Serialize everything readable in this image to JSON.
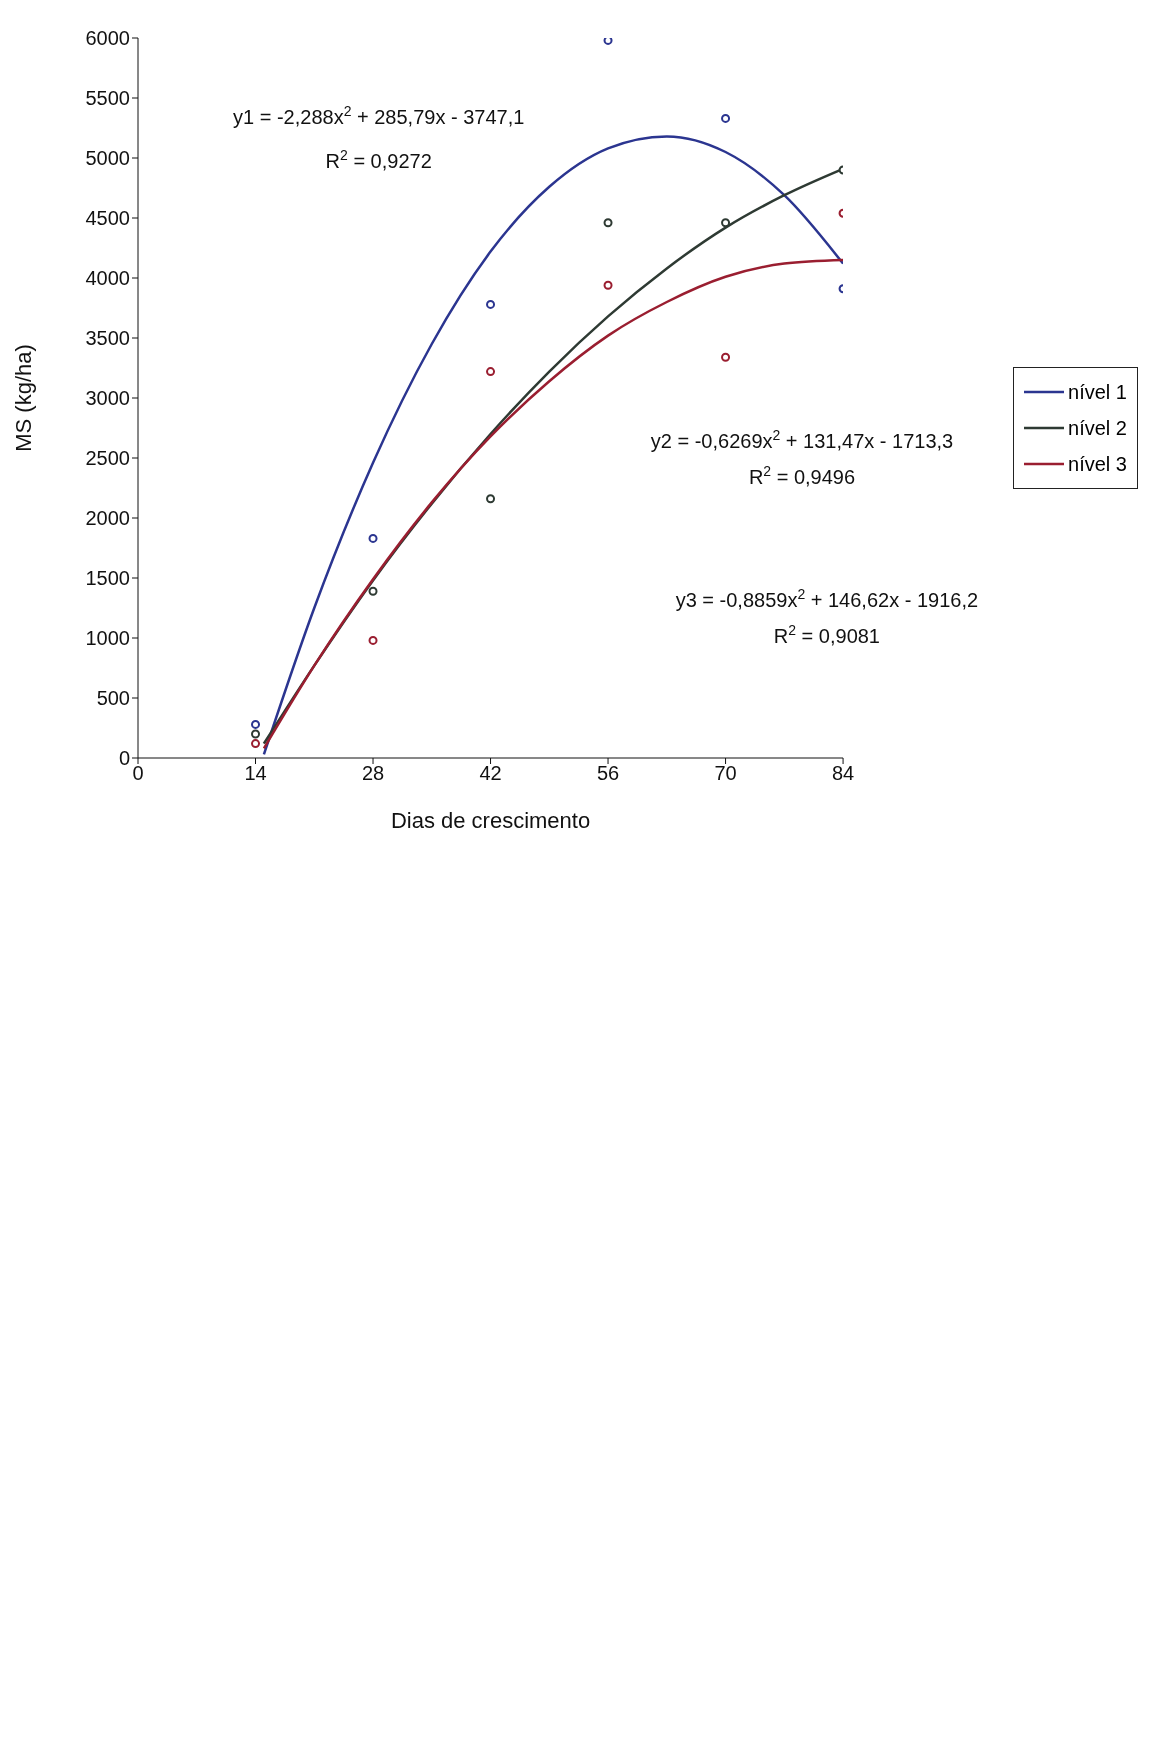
{
  "chart_data": {
    "type": "scatter",
    "xlabel": "Dias de crescimento",
    "ylabel": "MS (kg/ha)",
    "xlim": [
      0,
      84
    ],
    "xticks": [
      0,
      14,
      28,
      42,
      56,
      70,
      84
    ],
    "ylim": [
      0,
      6000
    ],
    "yticks": [
      0,
      500,
      1000,
      1500,
      2000,
      2500,
      3000,
      3500,
      4000,
      4500,
      5000,
      5500,
      6000
    ],
    "grid": false,
    "legend": "right",
    "marker": "circle",
    "annotations": [
      "y1 = -2,288x$^{2}$ + 285,79x - 3747,1",
      "R$^{2}$ = 0,9272",
      "y2 = -0,6269x$^{2}$ + 131,47x - 1713,3",
      "R$^{2}$ = 0,9496",
      "y3 = -0,8859x$^{2}$ + 146,62x - 1916,2",
      "R$^{2}$ = 0,9081"
    ],
    "series": [
      {
        "color": "#2b3590",
        "x": [
          14,
          28,
          42,
          56,
          70,
          84
        ],
        "values": [
          280,
          1830,
          3780,
          5980,
          5330,
          3910
        ]
      },
      {
        "color": "#2e3a33",
        "x": [
          14,
          28,
          42,
          56,
          70,
          84
        ],
        "values": [
          200,
          1390,
          2160,
          4460,
          4460,
          4900
        ]
      },
      {
        "color": "#9a1e30",
        "x": [
          14,
          28,
          42,
          56,
          70,
          84
        ],
        "values": [
          120,
          980,
          3220,
          3940,
          3340,
          4540
        ]
      },
      {
        "type": "line",
        "name": "nível 1",
        "color": "#2b3590",
        "marker": "none",
        "x": [
          15,
          21,
          28,
          35,
          42,
          49,
          56,
          63,
          70,
          77,
          84
        ],
        "values": [
          30,
          1250,
          2460,
          3450,
          4220,
          4760,
          5080,
          5180,
          5050,
          4690,
          4120
        ]
      },
      {
        "type": "line",
        "name": "nível 2",
        "color": "#2e3a33",
        "marker": "none",
        "x": [
          15,
          21,
          28,
          35,
          42,
          49,
          56,
          63,
          70,
          77,
          84
        ],
        "values": [
          120,
          770,
          1480,
          2120,
          2700,
          3220,
          3680,
          4080,
          4420,
          4690,
          4910
        ]
      },
      {
        "type": "line",
        "name": "nível 3",
        "color": "#9a1e30",
        "marker": "none",
        "x": [
          15,
          21,
          28,
          35,
          42,
          49,
          56,
          63,
          70,
          77,
          84
        ],
        "values": [
          80,
          770,
          1490,
          2130,
          2680,
          3140,
          3520,
          3800,
          4010,
          4120,
          4150
        ]
      }
    ]
  }
}
